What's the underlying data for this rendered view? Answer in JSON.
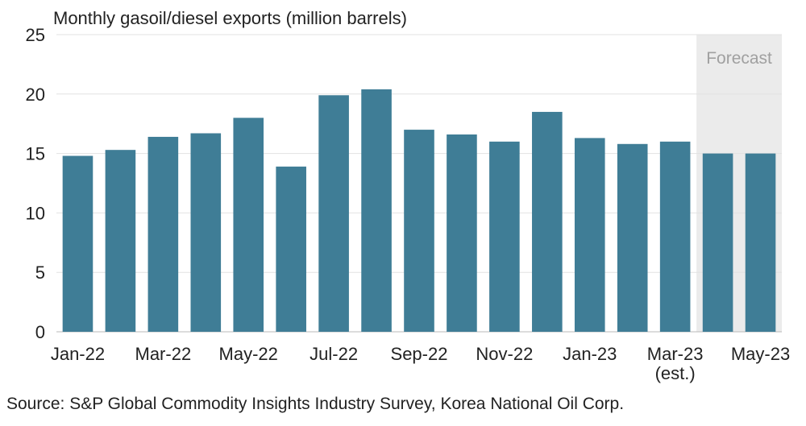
{
  "chart_data": {
    "type": "bar",
    "title": "Monthly gasoil/diesel exports (million barrels)",
    "source": "Source: S&P Global Commodity Insights Industry Survey, Korea National Oil Corp.",
    "categories": [
      "Jan-22",
      "Feb-22",
      "Mar-22",
      "Apr-22",
      "May-22",
      "Jun-22",
      "Jul-22",
      "Aug-22",
      "Sep-22",
      "Oct-22",
      "Nov-22",
      "Dec-22",
      "Jan-23",
      "Feb-23",
      "Mar-23",
      "Apr-23",
      "May-23"
    ],
    "values": [
      14.8,
      15.3,
      16.4,
      16.7,
      18.0,
      13.9,
      19.9,
      20.4,
      17.0,
      16.6,
      16.0,
      18.5,
      16.3,
      15.8,
      16.0,
      15.0,
      15.0
    ],
    "ylim": [
      0,
      25
    ],
    "yticks": [
      0,
      5,
      10,
      15,
      20,
      25
    ],
    "xtick_labels": [
      {
        "category": "Jan-22",
        "label": "Jan-22"
      },
      {
        "category": "Mar-22",
        "label": "Mar-22"
      },
      {
        "category": "May-22",
        "label": "May-22"
      },
      {
        "category": "Jul-22",
        "label": "Jul-22"
      },
      {
        "category": "Sep-22",
        "label": "Sep-22"
      },
      {
        "category": "Nov-22",
        "label": "Nov-22"
      },
      {
        "category": "Jan-23",
        "label": "Jan-23"
      },
      {
        "category": "Mar-23",
        "label": "Mar-23",
        "sublabel": "(est.)"
      },
      {
        "category": "May-23",
        "label": "May-23"
      }
    ],
    "forecast": {
      "label": "Forecast",
      "from": "Apr-23",
      "to": "May-23"
    },
    "grid": true,
    "bar_color": "#3f7d96",
    "forecast_shade_color": "#ebebeb",
    "grid_color": "#e2e2e2"
  }
}
